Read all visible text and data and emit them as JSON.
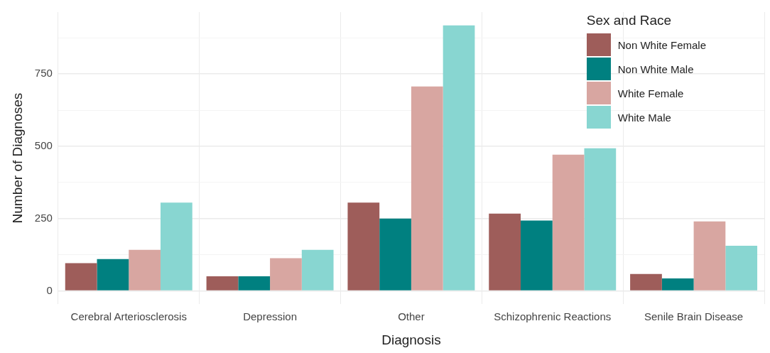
{
  "chart_data": {
    "type": "bar",
    "xlabel": "Diagnosis",
    "ylabel": "Number of Diagnoses",
    "legend_title": "Sex and Race",
    "categories": [
      "Cerebral Arteriosclerosis",
      "Depression",
      "Other",
      "Schizophrenic Reactions",
      "Senile Brain Disease"
    ],
    "series": [
      {
        "name": "Non White Female",
        "color": "#9e5d5a",
        "values": [
          96,
          50,
          305,
          267,
          58
        ]
      },
      {
        "name": "Non White Male",
        "color": "#008080",
        "values": [
          110,
          50,
          250,
          243,
          43
        ]
      },
      {
        "name": "White Female",
        "color": "#d8a6a1",
        "values": [
          142,
          113,
          707,
          471,
          240
        ]
      },
      {
        "name": "White Male",
        "color": "#88d6d1",
        "values": [
          305,
          142,
          918,
          493,
          156
        ]
      }
    ],
    "ylim": [
      -46,
      964
    ],
    "yticks": [
      0,
      {
        "value": 125,
        "label": null
      },
      250,
      {
        "value": 375,
        "label": null
      },
      500,
      {
        "value": 625,
        "label": null
      },
      750,
      {
        "value": 875,
        "label": null
      }
    ],
    "grid": true,
    "legend": "top right"
  }
}
